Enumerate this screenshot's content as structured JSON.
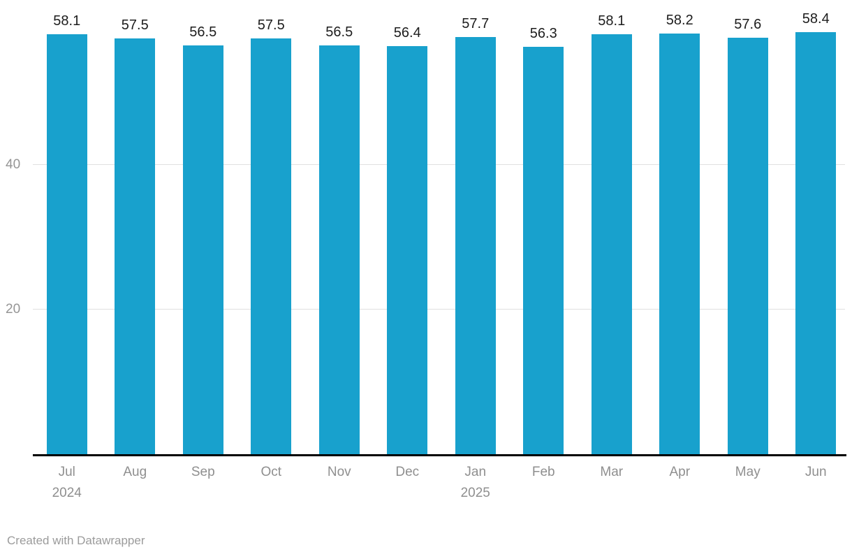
{
  "chart_data": {
    "type": "bar",
    "categories": [
      "Jul 2024",
      "Aug",
      "Sep",
      "Oct",
      "Nov",
      "Dec",
      "Jan 2025",
      "Feb",
      "Mar",
      "Apr",
      "May",
      "Jun"
    ],
    "x_tick_labels": [
      {
        "month": "Jul",
        "year": "2024"
      },
      {
        "month": "Aug",
        "year": ""
      },
      {
        "month": "Sep",
        "year": ""
      },
      {
        "month": "Oct",
        "year": ""
      },
      {
        "month": "Nov",
        "year": ""
      },
      {
        "month": "Dec",
        "year": ""
      },
      {
        "month": "Jan",
        "year": "2025"
      },
      {
        "month": "Feb",
        "year": ""
      },
      {
        "month": "Mar",
        "year": ""
      },
      {
        "month": "Apr",
        "year": ""
      },
      {
        "month": "May",
        "year": ""
      },
      {
        "month": "Jun",
        "year": ""
      }
    ],
    "values": [
      58.1,
      57.5,
      56.5,
      57.5,
      56.5,
      56.4,
      57.7,
      56.3,
      58.1,
      58.2,
      57.6,
      58.4
    ],
    "value_labels": [
      "58.1",
      "57.5",
      "56.5",
      "57.5",
      "56.5",
      "56.4",
      "57.7",
      "56.3",
      "58.1",
      "58.2",
      "57.6",
      "58.4"
    ],
    "y_ticks": [
      20,
      40
    ],
    "ylim": [
      0,
      62.8
    ],
    "grid": true,
    "legend": "none",
    "title": "",
    "xlabel": "",
    "ylabel": "",
    "bar_color": "#18a1cd",
    "gridline_color": "#e0e0e0",
    "axis_line_color": "#000000",
    "value_label_color": "#1d1d1d",
    "tick_label_color": "#8f8f8f"
  },
  "footer": {
    "credit": "Created with Datawrapper"
  }
}
